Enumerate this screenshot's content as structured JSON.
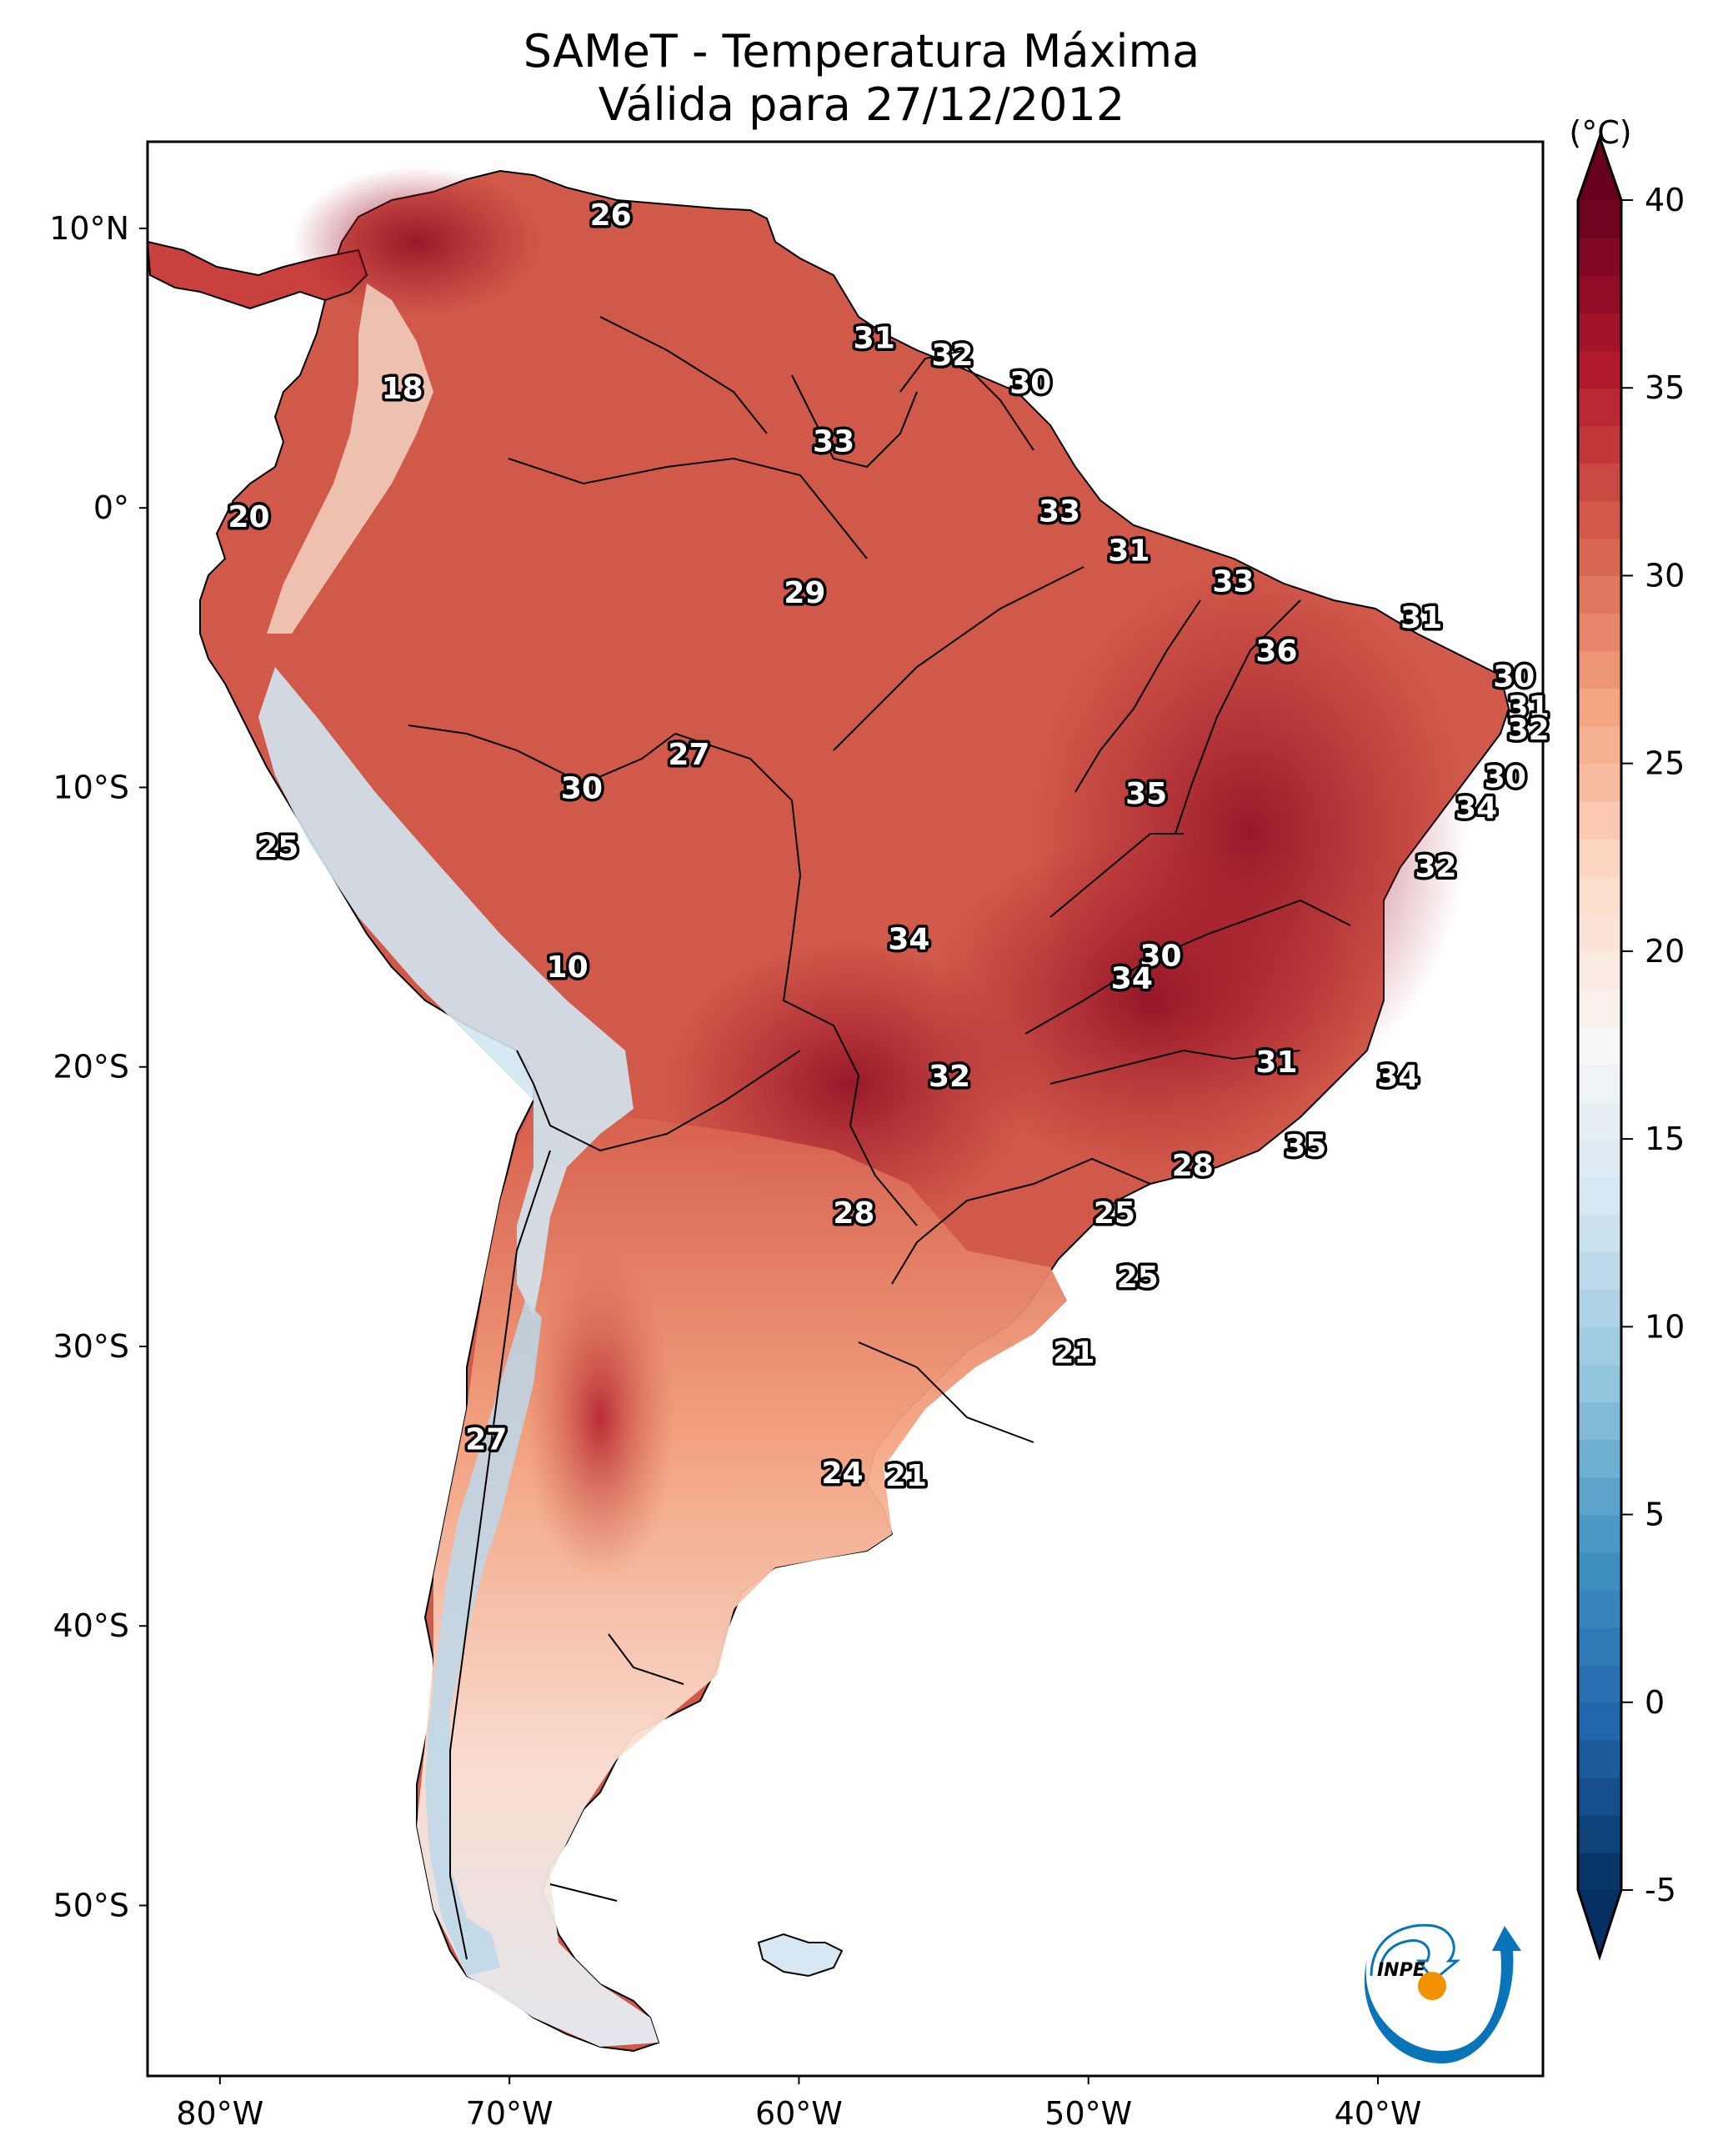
{
  "title": {
    "line1": "SAMeT - Temperatura Máxima",
    "line2": "Válida para 27/12/2012"
  },
  "chart_data": {
    "type": "heatmap",
    "title": "SAMeT - Temperatura Máxima",
    "subtitle": "Válida para 27/12/2012",
    "xlabel": "",
    "ylabel": "",
    "x_ticks": [
      {
        "value": -80,
        "label": "80°W"
      },
      {
        "value": -70,
        "label": "70°W"
      },
      {
        "value": -60,
        "label": "60°W"
      },
      {
        "value": -50,
        "label": "50°W"
      },
      {
        "value": -40,
        "label": "40°W"
      }
    ],
    "y_ticks": [
      {
        "value": 10,
        "label": "10°N"
      },
      {
        "value": 0,
        "label": "0°"
      },
      {
        "value": -10,
        "label": "10°S"
      },
      {
        "value": -20,
        "label": "20°S"
      },
      {
        "value": -30,
        "label": "30°S"
      },
      {
        "value": -40,
        "label": "40°S"
      },
      {
        "value": -50,
        "label": "50°S"
      }
    ],
    "xlim": [
      -82.5,
      -34.3
    ],
    "ylim": [
      -56.1,
      13.1
    ],
    "grid": false,
    "colorbar": {
      "unit": "(°C)",
      "range": [
        -5,
        40
      ],
      "extend": "both",
      "cmap": "RdBu_r",
      "ticks": [
        40,
        35,
        30,
        25,
        20,
        15,
        10,
        5,
        0,
        -5
      ],
      "tick_labels": [
        "40",
        "35",
        "30",
        "25",
        "20",
        "15",
        "10",
        "5",
        "0",
        "-5"
      ],
      "placement": "right"
    },
    "annotations": [
      {
        "lon": -66.5,
        "lat": 10.5,
        "value": 26
      },
      {
        "lon": -57.4,
        "lat": 6.1,
        "value": 31
      },
      {
        "lon": -54.7,
        "lat": 5.5,
        "value": 32
      },
      {
        "lon": -52.0,
        "lat": 4.5,
        "value": 30
      },
      {
        "lon": -73.7,
        "lat": 4.3,
        "value": 18
      },
      {
        "lon": -58.8,
        "lat": 2.4,
        "value": 33
      },
      {
        "lon": -79.0,
        "lat": -0.3,
        "value": 20
      },
      {
        "lon": -51.0,
        "lat": -0.1,
        "value": 33
      },
      {
        "lon": -48.6,
        "lat": -1.5,
        "value": 31
      },
      {
        "lon": -59.8,
        "lat": -3.0,
        "value": 29
      },
      {
        "lon": -45.0,
        "lat": -2.6,
        "value": 33
      },
      {
        "lon": -38.5,
        "lat": -3.9,
        "value": 31
      },
      {
        "lon": -43.5,
        "lat": -5.1,
        "value": 36
      },
      {
        "lon": -35.3,
        "lat": -6.0,
        "value": 30
      },
      {
        "lon": -34.8,
        "lat": -7.1,
        "value": 31
      },
      {
        "lon": -34.8,
        "lat": -7.9,
        "value": 32
      },
      {
        "lon": -63.8,
        "lat": -8.8,
        "value": 27
      },
      {
        "lon": -67.5,
        "lat": -10.0,
        "value": 30
      },
      {
        "lon": -48.0,
        "lat": -10.2,
        "value": 35
      },
      {
        "lon": -35.6,
        "lat": -9.6,
        "value": 30
      },
      {
        "lon": -36.6,
        "lat": -10.7,
        "value": 34
      },
      {
        "lon": -78.0,
        "lat": -12.1,
        "value": 25
      },
      {
        "lon": -38.0,
        "lat": -12.8,
        "value": 32
      },
      {
        "lon": -68.0,
        "lat": -16.4,
        "value": 10
      },
      {
        "lon": -56.2,
        "lat": -15.4,
        "value": 34
      },
      {
        "lon": -47.5,
        "lat": -16.0,
        "value": 30
      },
      {
        "lon": -48.5,
        "lat": -16.8,
        "value": 34
      },
      {
        "lon": -54.8,
        "lat": -20.3,
        "value": 32
      },
      {
        "lon": -43.5,
        "lat": -19.8,
        "value": 31
      },
      {
        "lon": -39.3,
        "lat": -20.3,
        "value": 34
      },
      {
        "lon": -42.5,
        "lat": -22.8,
        "value": 35
      },
      {
        "lon": -46.4,
        "lat": -23.5,
        "value": 28
      },
      {
        "lon": -58.1,
        "lat": -25.2,
        "value": 28
      },
      {
        "lon": -49.1,
        "lat": -25.2,
        "value": 25
      },
      {
        "lon": -48.3,
        "lat": -27.5,
        "value": 25
      },
      {
        "lon": -50.5,
        "lat": -30.2,
        "value": 21
      },
      {
        "lon": -70.8,
        "lat": -33.3,
        "value": 27
      },
      {
        "lon": -58.5,
        "lat": -34.5,
        "value": 24
      },
      {
        "lon": -56.3,
        "lat": -34.6,
        "value": 21
      }
    ]
  },
  "logo": {
    "text": "INPE",
    "colors": {
      "blue": "#0a74b8",
      "orange": "#f39200"
    }
  }
}
